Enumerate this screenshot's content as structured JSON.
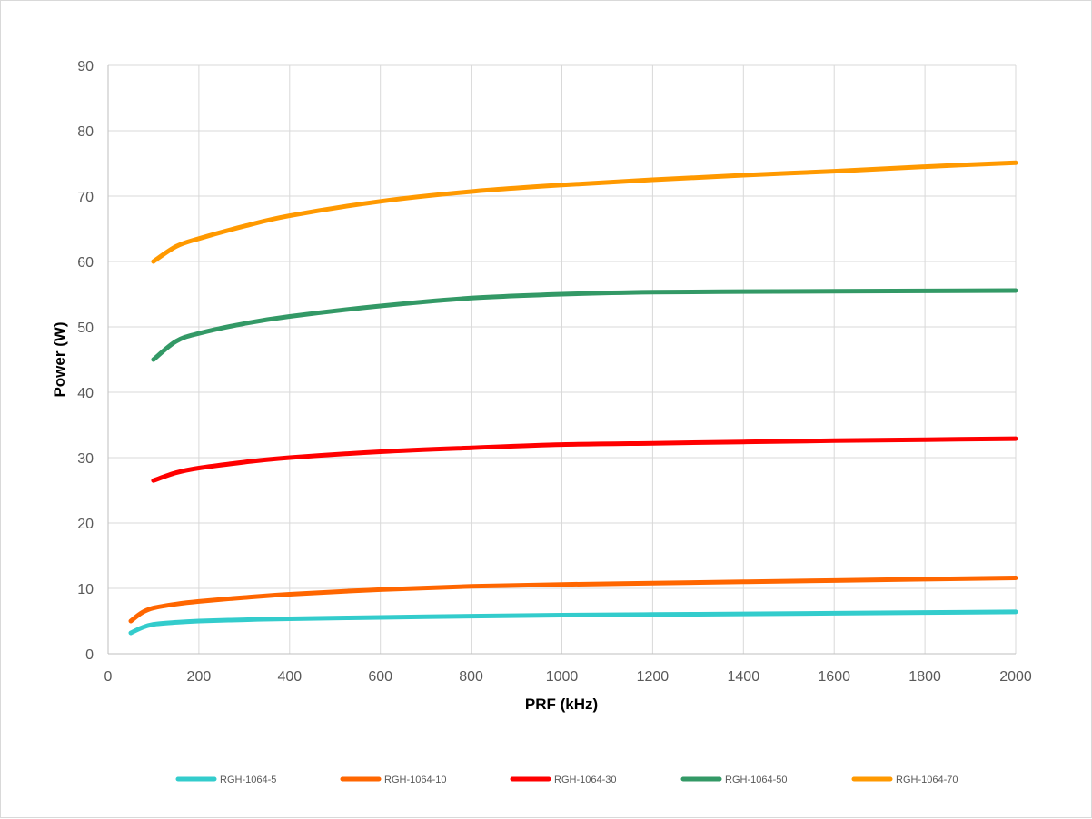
{
  "chart_data": {
    "type": "line",
    "title": "",
    "xlabel": "PRF (kHz)",
    "ylabel": "Power (W)",
    "xlim": [
      0,
      2000
    ],
    "ylim": [
      0,
      90
    ],
    "x_ticks": [
      0,
      200,
      400,
      600,
      800,
      1000,
      1200,
      1400,
      1600,
      1800,
      2000
    ],
    "y_ticks": [
      0,
      10,
      20,
      30,
      40,
      50,
      60,
      70,
      80,
      90
    ],
    "grid": true,
    "legend_position": "bottom",
    "series": [
      {
        "name": "RGH-1064-5",
        "color": "#33cccc",
        "x": [
          50,
          75,
          100,
          150,
          200,
          300,
          400,
          600,
          800,
          1000,
          1200,
          1400,
          1600,
          1800,
          2000
        ],
        "y": [
          3.2,
          4.0,
          4.5,
          4.8,
          5.0,
          5.2,
          5.35,
          5.55,
          5.75,
          5.9,
          6.0,
          6.1,
          6.2,
          6.3,
          6.4
        ]
      },
      {
        "name": "RGH-1064-10",
        "color": "#ff6600",
        "x": [
          50,
          75,
          100,
          150,
          200,
          300,
          400,
          600,
          800,
          1000,
          1200,
          1400,
          1600,
          1800,
          2000
        ],
        "y": [
          5.0,
          6.3,
          7.0,
          7.6,
          8.0,
          8.6,
          9.1,
          9.8,
          10.3,
          10.6,
          10.8,
          11.0,
          11.2,
          11.4,
          11.6
        ]
      },
      {
        "name": "RGH-1064-30",
        "color": "#ff0000",
        "x": [
          100,
          150,
          200,
          300,
          400,
          600,
          800,
          1000,
          1200,
          1400,
          1600,
          1800,
          2000
        ],
        "y": [
          26.5,
          27.7,
          28.4,
          29.3,
          30.0,
          30.9,
          31.5,
          32.0,
          32.2,
          32.4,
          32.6,
          32.75,
          32.9
        ]
      },
      {
        "name": "RGH-1064-50",
        "color": "#339966",
        "x": [
          100,
          150,
          200,
          300,
          400,
          600,
          800,
          1000,
          1200,
          1400,
          1600,
          1800,
          2000
        ],
        "y": [
          45.0,
          47.8,
          49.0,
          50.5,
          51.6,
          53.2,
          54.4,
          55.0,
          55.3,
          55.4,
          55.45,
          55.5,
          55.55
        ]
      },
      {
        "name": "RGH-1064-70",
        "color": "#ff9900",
        "x": [
          100,
          150,
          200,
          300,
          400,
          600,
          800,
          1000,
          1200,
          1400,
          1600,
          1800,
          2000
        ],
        "y": [
          60.0,
          62.3,
          63.5,
          65.4,
          67.0,
          69.2,
          70.7,
          71.7,
          72.5,
          73.2,
          73.8,
          74.5,
          75.1
        ]
      }
    ]
  }
}
